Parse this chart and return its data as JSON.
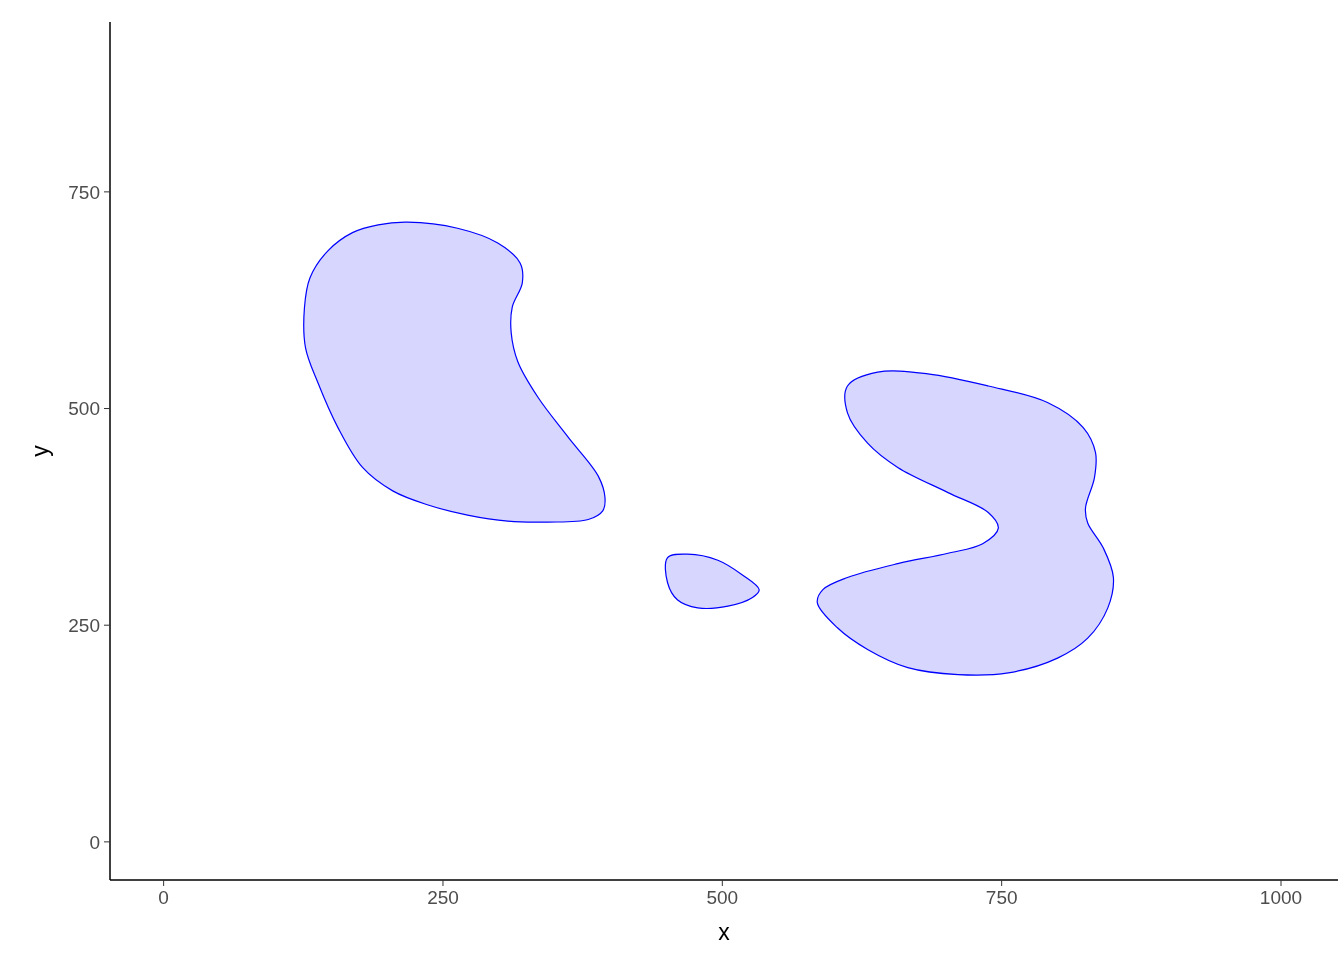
{
  "chart_data": {
    "type": "area",
    "xlabel": "x",
    "ylabel": "y",
    "xlim": [
      -48,
      1051
    ],
    "ylim": [
      -44,
      946
    ],
    "xticks": [
      0,
      250,
      500,
      750,
      1000
    ],
    "yticks": [
      0,
      250,
      500,
      750
    ],
    "grid": false,
    "series": [
      {
        "color": "#0000ff",
        "x": [
          218,
          263,
          299,
          319,
          321,
          312,
          311,
          317,
          335,
          362,
          389,
          395,
          393,
          380,
          344,
          308,
          272,
          236,
          205,
          178,
          156,
          138,
          127,
          126,
          131,
          147,
          169,
          192
        ],
        "values": [
          715,
          708,
          691,
          668,
          645,
          617,
          588,
          554,
          513,
          467,
          422,
          397,
          382,
          372,
          369,
          370,
          377,
          389,
          405,
          432,
          478,
          530,
          570,
          616,
          651,
          682,
          703,
          712
        ]
      },
      {
        "color": "#0000ff",
        "x": [
          451,
          469,
          496,
          518,
          533,
          527,
          505,
          478,
          460,
          451
        ],
        "values": [
          328,
          332,
          325,
          308,
          291,
          282,
          272,
          270,
          279,
          299
        ]
      },
      {
        "color": "#0000ff",
        "x": [
          612,
          639,
          684,
          738,
          791,
          823,
          834,
          833,
          825,
          827,
          841,
          850,
          845,
          827,
          800,
          756,
          711,
          666,
          630,
          603,
          585,
          590,
          612,
          657,
          702,
          733,
          747,
          738,
          702,
          657,
          630,
          612
        ],
        "values": [
          526,
          542,
          540,
          526,
          507,
          478,
          449,
          420,
          385,
          368,
          339,
          305,
          270,
          235,
          212,
          195,
          193,
          201,
          222,
          247,
          276,
          291,
          305,
          321,
          333,
          344,
          362,
          380,
          403,
          432,
          460,
          495
        ]
      }
    ]
  }
}
